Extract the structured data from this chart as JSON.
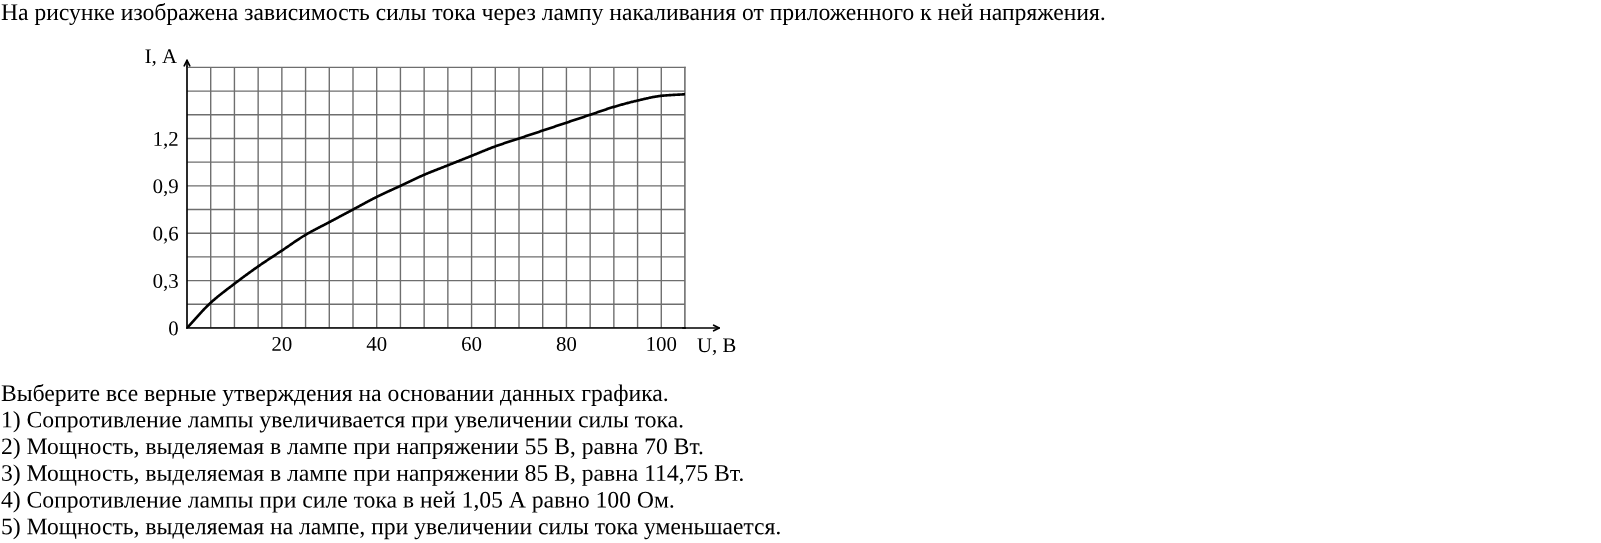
{
  "chart_data": {
    "type": "line",
    "title": "На рисунке изображена зависимость силы тока через лампу накаливания от приложенного к ней напряжения.",
    "xlabel": "U, В",
    "ylabel": "I, А",
    "x": [
      0,
      5,
      10,
      15,
      20,
      25,
      30,
      35,
      40,
      45,
      50,
      55,
      60,
      65,
      70,
      75,
      80,
      85,
      90,
      95,
      100,
      105
    ],
    "series": [
      {
        "color": "#000000",
        "values": [
          0,
          0.16,
          0.28,
          0.39,
          0.49,
          0.59,
          0.67,
          0.75,
          0.83,
          0.9,
          0.97,
          1.03,
          1.09,
          1.15,
          1.2,
          1.25,
          1.3,
          1.35,
          1.4,
          1.44,
          1.47,
          1.48
        ]
      }
    ],
    "xlim": [
      0,
      105
    ],
    "ylim": [
      0,
      1.65
    ],
    "xticks": [
      {
        "value": 5,
        "label": null
      },
      {
        "value": 10,
        "label": null
      },
      {
        "value": 15,
        "label": null
      },
      20,
      {
        "value": 25,
        "label": null
      },
      {
        "value": 30,
        "label": null
      },
      {
        "value": 35,
        "label": null
      },
      40,
      {
        "value": 45,
        "label": null
      },
      {
        "value": 50,
        "label": null
      },
      {
        "value": 55,
        "label": null
      },
      60,
      {
        "value": 65,
        "label": null
      },
      {
        "value": 70,
        "label": null
      },
      {
        "value": 75,
        "label": null
      },
      80,
      {
        "value": 85,
        "label": null
      },
      {
        "value": 90,
        "label": null
      },
      {
        "value": 95,
        "label": null
      },
      100,
      {
        "value": 105,
        "label": null
      }
    ],
    "yticks": [
      0,
      {
        "value": 0.15,
        "label": null
      },
      {
        "value": 0.3,
        "label": "0,3"
      },
      {
        "value": 0.45,
        "label": null
      },
      {
        "value": 0.6,
        "label": "0,6"
      },
      {
        "value": 0.75,
        "label": null
      },
      {
        "value": 0.9,
        "label": "0,9"
      },
      {
        "value": 1.05,
        "label": null
      },
      {
        "value": 1.2,
        "label": "1,2"
      },
      {
        "value": 1.35,
        "label": null
      },
      {
        "value": 1.5,
        "label": null
      },
      {
        "value": 1.65,
        "label": null
      }
    ],
    "grid": true,
    "line_style": "solid",
    "annotations": [
      "Выберите все верные утверждения на основании данных графика.",
      "1) Сопротивление лампы увеличивается при увеличении силы тока.",
      "2) Мощность, выделяемая в лампе при напряжении 55 В, равна 70 Вт.",
      "3) Мощность, выделяемая в лампе при напряжении 85 В, равна 114,75 Вт.",
      "4) Сопротивление лампы при силе тока в ней 1,05 А равно 100 Ом.",
      "5) Мощность, выделяемая на лампе, при увеличении силы тока уменьшается."
    ]
  }
}
